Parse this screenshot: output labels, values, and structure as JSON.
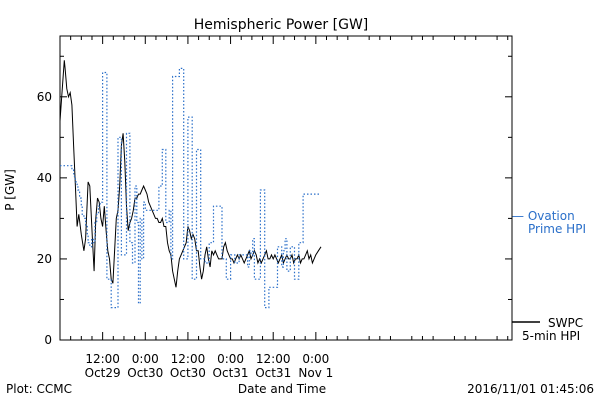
{
  "chart_data": {
    "type": "line",
    "title": "Hemispheric Power [GW]",
    "ylabel": "P [GW]",
    "xlabel": "Date and Time",
    "ylim": [
      0,
      75
    ],
    "xlim": [
      0,
      5.3
    ],
    "yticks": [
      0,
      20,
      40,
      60
    ],
    "xticks": [
      {
        "x": 0.5,
        "time": "12:00",
        "date": "Oct29"
      },
      {
        "x": 1.0,
        "time": "0:00",
        "date": "Oct30"
      },
      {
        "x": 1.5,
        "time": "12:00",
        "date": "Oct30"
      },
      {
        "x": 2.0,
        "time": "0:00",
        "date": "Oct31"
      },
      {
        "x": 2.5,
        "time": "12:00",
        "date": "Oct31"
      },
      {
        "x": 3.0,
        "time": "0:00",
        "date": "Nov 1"
      }
    ],
    "series": [
      {
        "name": "SWPC 5-min HPI",
        "color": "#000000",
        "style": "solid",
        "x": [
          0.0,
          0.02,
          0.05,
          0.06,
          0.08,
          0.1,
          0.12,
          0.14,
          0.16,
          0.18,
          0.2,
          0.22,
          0.25,
          0.28,
          0.3,
          0.33,
          0.35,
          0.38,
          0.4,
          0.42,
          0.44,
          0.46,
          0.48,
          0.5,
          0.52,
          0.54,
          0.56,
          0.58,
          0.6,
          0.62,
          0.64,
          0.66,
          0.68,
          0.7,
          0.72,
          0.74,
          0.76,
          0.78,
          0.8,
          0.82,
          0.84,
          0.86,
          0.88,
          0.9,
          0.92,
          0.94,
          0.96,
          0.98,
          1.0,
          1.02,
          1.04,
          1.06,
          1.08,
          1.1,
          1.12,
          1.14,
          1.16,
          1.18,
          1.2,
          1.22,
          1.24,
          1.26,
          1.28,
          1.3,
          1.32,
          1.34,
          1.36,
          1.38,
          1.4,
          1.42,
          1.44,
          1.46,
          1.48,
          1.5,
          1.52,
          1.54,
          1.56,
          1.58,
          1.6,
          1.62,
          1.64,
          1.66,
          1.68,
          1.7,
          1.72,
          1.74,
          1.76,
          1.78,
          1.8,
          1.82,
          1.84,
          1.86,
          1.88,
          1.9,
          1.92,
          1.94,
          1.96,
          1.98,
          2.0,
          2.02,
          2.04,
          2.06,
          2.08,
          2.1,
          2.12,
          2.14,
          2.16,
          2.18,
          2.2,
          2.22,
          2.24,
          2.26,
          2.28,
          2.3,
          2.32,
          2.34,
          2.36,
          2.38,
          2.4,
          2.42,
          2.44,
          2.46,
          2.48,
          2.5,
          2.52,
          2.54,
          2.56,
          2.58,
          2.6,
          2.62,
          2.64,
          2.66,
          2.68,
          2.7,
          2.72,
          2.74,
          2.76,
          2.78,
          2.8,
          2.82,
          2.84,
          2.86,
          2.88,
          2.9,
          2.92,
          2.94,
          2.96,
          2.98,
          3.0,
          3.03,
          3.06
        ],
        "y": [
          54,
          60,
          69,
          67,
          62,
          60,
          61,
          58,
          48,
          38,
          28,
          31,
          26,
          22,
          25,
          39,
          38,
          25,
          17,
          30,
          35,
          34,
          30,
          28,
          33,
          27,
          22,
          20,
          15,
          14,
          22,
          30,
          32,
          38,
          48,
          51,
          44,
          33,
          27,
          29,
          30,
          32,
          35,
          35,
          36,
          36,
          37,
          38,
          37,
          36,
          34,
          33,
          32,
          31,
          30,
          30,
          29,
          29,
          30,
          28,
          28,
          24,
          22,
          21,
          17,
          15,
          13,
          17,
          20,
          21,
          22,
          23,
          24,
          28,
          27,
          25,
          26,
          25,
          22,
          22,
          18,
          15,
          17,
          21,
          23,
          20,
          18,
          22,
          21,
          22,
          21,
          20,
          20,
          20,
          23,
          24,
          22,
          21,
          20,
          20,
          19,
          20,
          21,
          20,
          21,
          20,
          19,
          20,
          21,
          22,
          20,
          21,
          22,
          21,
          19,
          20,
          19,
          20,
          21,
          22,
          20,
          20,
          21,
          20,
          21,
          20,
          19,
          20,
          21,
          19,
          20,
          21,
          20,
          20,
          21,
          19,
          20,
          20,
          21,
          19,
          20,
          20,
          21,
          22,
          20,
          21,
          19,
          20,
          21,
          22,
          23
        ]
      },
      {
        "name": "Ovation Prime HPI",
        "color": "#2a6fc9",
        "style": "dotted",
        "x": [
          0.0,
          0.14,
          0.16,
          0.17,
          0.18,
          0.2,
          0.21,
          0.23,
          0.25,
          0.26,
          0.28,
          0.3,
          0.32,
          0.33,
          0.35,
          0.37,
          0.39,
          0.41,
          0.43,
          0.45,
          0.47,
          0.5,
          0.55,
          0.6,
          0.68,
          0.72,
          0.78,
          0.82,
          0.85,
          0.88,
          0.9,
          0.92,
          0.94,
          0.96,
          0.98,
          1.0,
          1.02,
          1.04,
          1.08,
          1.12,
          1.16,
          1.2,
          1.24,
          1.28,
          1.3,
          1.32,
          1.35,
          1.4,
          1.45,
          1.5,
          1.55,
          1.6,
          1.65,
          1.7,
          1.75,
          1.8,
          1.85,
          1.9,
          1.95,
          2.0,
          2.05,
          2.1,
          2.15,
          2.2,
          2.22,
          2.24,
          2.26,
          2.28,
          2.3,
          2.35,
          2.4,
          2.45,
          2.5,
          2.55,
          2.6,
          2.62,
          2.64,
          2.66,
          2.7,
          2.75,
          2.8,
          2.85,
          2.9,
          2.95,
          3.0,
          3.06
        ],
        "y": [
          43,
          42,
          41,
          40,
          39,
          38,
          37,
          35,
          33,
          31,
          30,
          28,
          26,
          24,
          23,
          25,
          24,
          29,
          31,
          33,
          34,
          66,
          15,
          8,
          50,
          21,
          51,
          24,
          19,
          38,
          29,
          9,
          30,
          20,
          34,
          32,
          32,
          32,
          32,
          32,
          38,
          47,
          29,
          32,
          20,
          65,
          65,
          67,
          20,
          55,
          15,
          47,
          20,
          19,
          24,
          33,
          33,
          20,
          15,
          21,
          19,
          21,
          21,
          18,
          22,
          21,
          25,
          15,
          15,
          37,
          8,
          13,
          13,
          23,
          18,
          22,
          25,
          17,
          23,
          15,
          24,
          36,
          36,
          36,
          36,
          36
        ]
      }
    ],
    "legend": {
      "placement": "right",
      "entries": [
        {
          "line1": "— Ovation",
          "line2": "Prime HPI",
          "color": "#2a6fc9"
        },
        {
          "line1": "SWPC",
          "line2": "5-min HPI",
          "color": "#000000"
        }
      ]
    },
    "footer": {
      "left": "Plot: CCMC",
      "right": "2016/11/01 01:45:06"
    }
  }
}
